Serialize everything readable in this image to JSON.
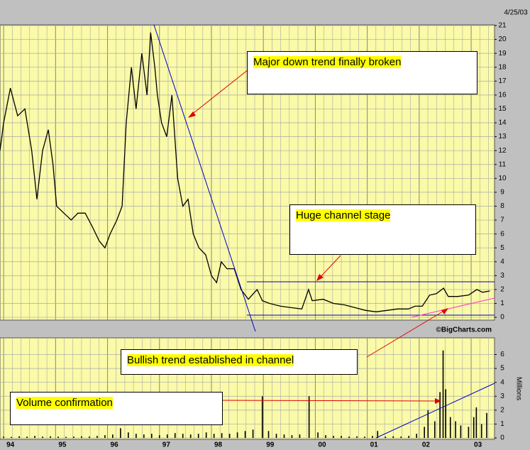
{
  "date": "4/25/03",
  "source": "©BigCharts.com",
  "annotations": [
    "Major down trend finally broken",
    "Huge channel stage",
    "Bullish trend established in channel",
    "Volume confirmation"
  ],
  "chart_data": [
    {
      "type": "line",
      "color": "#000000",
      "grid": true,
      "xlim": [
        1993.93,
        2003.45
      ],
      "ylim": [
        -0.2,
        21.05
      ],
      "yticks": [
        0,
        1,
        2,
        3,
        4,
        5,
        6,
        7,
        8,
        9,
        10,
        11,
        12,
        13,
        14,
        15,
        16,
        17,
        18,
        19,
        20,
        21
      ],
      "x": [
        1993.93,
        1994.0,
        1994.13,
        1994.27,
        1994.41,
        1994.54,
        1994.64,
        1994.75,
        1994.86,
        1994.95,
        1995.02,
        1995.16,
        1995.3,
        1995.43,
        1995.57,
        1995.71,
        1995.84,
        1995.95,
        1996.05,
        1996.18,
        1996.28,
        1996.36,
        1996.46,
        1996.55,
        1996.66,
        1996.76,
        1996.83,
        1996.91,
        1996.96,
        1997.04,
        1997.14,
        1997.24,
        1997.35,
        1997.45,
        1997.55,
        1997.65,
        1997.76,
        1997.89,
        1998.0,
        1998.1,
        1998.19,
        1998.3,
        1998.44,
        1998.57,
        1998.71,
        1998.88,
        1998.98,
        1999.12,
        1999.33,
        1999.53,
        1999.74,
        1999.87,
        1999.94,
        2000.15,
        2000.35,
        2000.56,
        2000.76,
        2000.97,
        2001.17,
        2001.38,
        2001.58,
        2001.79,
        2001.92,
        2002.06,
        2002.2,
        2002.33,
        2002.47,
        2002.56,
        2002.74,
        2002.95,
        2003.11,
        2003.22,
        2003.36
      ],
      "values": [
        12,
        14,
        16.5,
        14.5,
        15,
        12,
        8.5,
        12,
        13.5,
        11,
        8,
        7.5,
        7,
        7.5,
        7.5,
        6.5,
        5.5,
        5,
        6,
        7,
        8,
        14,
        18,
        15,
        19,
        16,
        20.5,
        18,
        16,
        14,
        13,
        16,
        10,
        8,
        8.5,
        6,
        5,
        4.5,
        3,
        2.5,
        4,
        3.5,
        3.5,
        2,
        1.3,
        2,
        1.2,
        1.0,
        0.8,
        0.7,
        0.6,
        2.0,
        1.2,
        1.3,
        1.0,
        0.9,
        0.7,
        0.5,
        0.4,
        0.5,
        0.6,
        0.6,
        0.8,
        0.8,
        1.6,
        1.7,
        2.1,
        1.5,
        1.5,
        1.6,
        2.0,
        1.8,
        1.9
      ]
    },
    {
      "type": "bar",
      "color": "#000000",
      "grid": true,
      "y_label": "Millions",
      "xlim": [
        1993.93,
        2003.45
      ],
      "ylim": [
        -0.1,
        7.2
      ],
      "yticks": [
        0,
        1,
        2,
        3,
        4,
        5,
        6
      ],
      "xticks": [
        {
          "value": 1994,
          "label": "94"
        },
        {
          "value": 1995,
          "label": "95"
        },
        {
          "value": 1996,
          "label": "96"
        },
        {
          "value": 1997,
          "label": "97"
        },
        {
          "value": 1998,
          "label": "98"
        },
        {
          "value": 1999,
          "label": "99"
        },
        {
          "value": 2000,
          "label": "00"
        },
        {
          "value": 2001,
          "label": "01"
        },
        {
          "value": 2002,
          "label": "02"
        },
        {
          "value": 2003,
          "label": "03"
        }
      ],
      "x": [
        1994.0,
        1994.15,
        1994.3,
        1994.45,
        1994.6,
        1994.75,
        1994.9,
        1995.05,
        1995.2,
        1995.35,
        1995.5,
        1995.65,
        1995.8,
        1995.95,
        1996.1,
        1996.25,
        1996.4,
        1996.55,
        1996.7,
        1996.85,
        1997.0,
        1997.15,
        1997.3,
        1997.45,
        1997.6,
        1997.75,
        1997.9,
        1998.05,
        1998.2,
        1998.35,
        1998.5,
        1998.65,
        1998.8,
        1998.98,
        1999.1,
        1999.25,
        1999.4,
        1999.55,
        1999.7,
        1999.88,
        2000.05,
        2000.2,
        2000.35,
        2000.5,
        2000.65,
        2000.8,
        2000.95,
        2001.1,
        2001.2,
        2001.35,
        2001.5,
        2001.65,
        2001.8,
        2001.95,
        2002.1,
        2002.17,
        2002.3,
        2002.4,
        2002.46,
        2002.51,
        2002.6,
        2002.7,
        2002.8,
        2002.95,
        2003.05,
        2003.1,
        2003.2,
        2003.3
      ],
      "values": [
        0.1,
        0.08,
        0.12,
        0.1,
        0.15,
        0.1,
        0.12,
        0.1,
        0.08,
        0.1,
        0.12,
        0.1,
        0.15,
        0.2,
        0.25,
        0.7,
        0.4,
        0.3,
        0.25,
        0.3,
        0.2,
        0.25,
        0.35,
        0.3,
        0.25,
        0.3,
        0.4,
        0.3,
        0.35,
        0.3,
        0.4,
        0.5,
        0.6,
        3.0,
        0.5,
        0.3,
        0.25,
        0.2,
        0.25,
        3.0,
        0.4,
        0.2,
        0.15,
        0.15,
        0.1,
        0.12,
        0.1,
        0.15,
        0.5,
        0.1,
        0.12,
        0.1,
        0.15,
        0.3,
        0.8,
        2.0,
        1.2,
        3.3,
        6.3,
        3.5,
        1.5,
        1.2,
        0.9,
        0.8,
        1.5,
        2.2,
        1.0,
        1.8
      ]
    }
  ]
}
